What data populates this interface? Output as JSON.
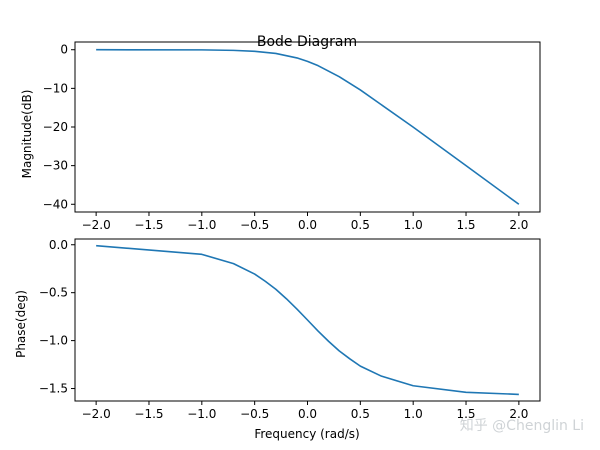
{
  "watermark": "知乎 @Chenglin Li",
  "colors": {
    "series": "#1f77b4",
    "axes": "#000000",
    "background": "#ffffff"
  },
  "chart_data": [
    {
      "type": "line",
      "title": "Bode Diagram",
      "xlabel": "",
      "ylabel": "Magnitude(dB)",
      "xlim": [
        -2.2,
        2.2
      ],
      "ylim": [
        -42,
        2
      ],
      "xticks": [
        -2.0,
        -1.5,
        -1.0,
        -0.5,
        0.0,
        0.5,
        1.0,
        1.5,
        2.0
      ],
      "xtick_labels": [
        "−2.0",
        "−1.5",
        "−1.0",
        "−0.5",
        "0.0",
        "0.5",
        "1.0",
        "1.5",
        "2.0"
      ],
      "yticks": [
        0,
        -10,
        -20,
        -30,
        -40
      ],
      "ytick_labels": [
        "0",
        "−10",
        "−20",
        "−30",
        "−40"
      ],
      "grid": false,
      "series": [
        {
          "x": [
            -2.0,
            -1.0,
            -0.7,
            -0.5,
            -0.3,
            -0.1,
            0.0,
            0.1,
            0.3,
            0.5,
            1.0,
            1.5,
            2.0
          ],
          "values": [
            0,
            -0.04,
            -0.17,
            -0.41,
            -0.97,
            -2.12,
            -3.01,
            -4.12,
            -6.97,
            -10.41,
            -20.04,
            -30.0,
            -40.0
          ]
        }
      ]
    },
    {
      "type": "line",
      "title": "",
      "xlabel": "Frequency (rad/s)",
      "ylabel": "Phase(deg)",
      "xlim": [
        -2.2,
        2.2
      ],
      "ylim": [
        -1.63,
        0.06
      ],
      "xticks": [
        -2.0,
        -1.5,
        -1.0,
        -0.5,
        0.0,
        0.5,
        1.0,
        1.5,
        2.0
      ],
      "xtick_labels": [
        "−2.0",
        "−1.5",
        "−1.0",
        "−0.5",
        "0.0",
        "0.5",
        "1.0",
        "1.5",
        "2.0"
      ],
      "yticks": [
        0.0,
        -0.5,
        -1.0,
        -1.5
      ],
      "ytick_labels": [
        "0.0",
        "−0.5",
        "−1.0",
        "−1.5"
      ],
      "grid": false,
      "series": [
        {
          "x": [
            -2.0,
            -1.0,
            -0.7,
            -0.5,
            -0.4,
            -0.3,
            -0.2,
            -0.1,
            0.0,
            0.1,
            0.2,
            0.3,
            0.4,
            0.5,
            0.7,
            1.0,
            1.5,
            2.0
          ],
          "values": [
            -0.01,
            -0.1,
            -0.197,
            -0.306,
            -0.381,
            -0.464,
            -0.563,
            -0.671,
            -0.785,
            -0.9,
            -1.008,
            -1.107,
            -1.19,
            -1.266,
            -1.371,
            -1.471,
            -1.539,
            -1.561
          ]
        }
      ]
    }
  ]
}
